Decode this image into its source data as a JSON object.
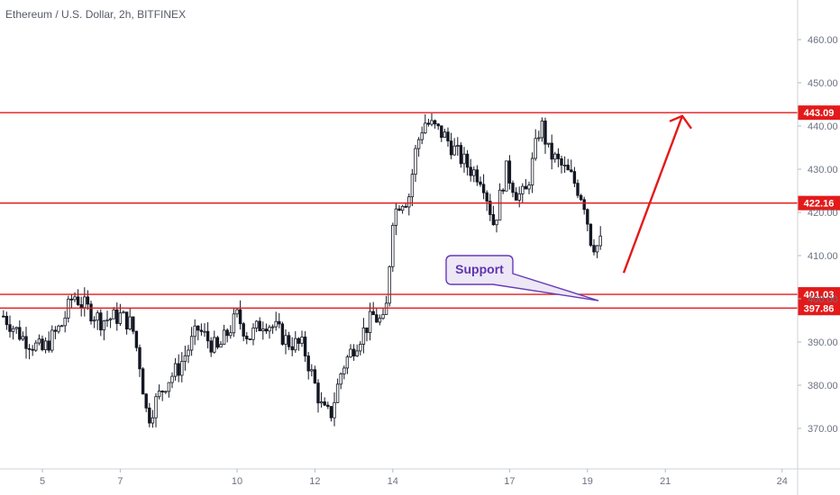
{
  "chart_data": {
    "type": "candlestick",
    "title": "Ethereum / U.S. Dollar, 2h, BITFINEX",
    "x_ticks": [
      "5",
      "7",
      "10",
      "12",
      "14",
      "17",
      "19",
      "21",
      "24"
    ],
    "y_ticks": [
      "370.00",
      "380.00",
      "390.00",
      "400.00",
      "410.00",
      "420.00",
      "430.00",
      "440.00",
      "450.00",
      "460.00"
    ],
    "ylim": [
      361,
      468
    ],
    "grid": false,
    "levels": [
      {
        "label": "443.09",
        "value": 443.09
      },
      {
        "label": "422.16",
        "value": 422.16
      },
      {
        "label": "401.03",
        "value": 401.03
      },
      {
        "label": "397.86",
        "value": 397.86
      }
    ],
    "annotation": {
      "text": "Support"
    },
    "projection": {
      "direction": "up",
      "from": 406,
      "to": 444
    },
    "price_path": [
      [
        4.0,
        396
      ],
      [
        4.5,
        391
      ],
      [
        5.0,
        388
      ],
      [
        5.5,
        394
      ],
      [
        5.8,
        401
      ],
      [
        6.0,
        399
      ],
      [
        6.5,
        395
      ],
      [
        7.0,
        396
      ],
      [
        7.3,
        394
      ],
      [
        7.5,
        385
      ],
      [
        7.7,
        372
      ],
      [
        7.9,
        376
      ],
      [
        8.2,
        381
      ],
      [
        8.5,
        384
      ],
      [
        9.0,
        393
      ],
      [
        9.5,
        388
      ],
      [
        10.0,
        396
      ],
      [
        10.3,
        391
      ],
      [
        10.7,
        395
      ],
      [
        11.0,
        393
      ],
      [
        11.3,
        390
      ],
      [
        11.7,
        389
      ],
      [
        12.0,
        380
      ],
      [
        12.2,
        374
      ],
      [
        12.4,
        373
      ],
      [
        12.7,
        384
      ],
      [
        13.0,
        389
      ],
      [
        13.5,
        396
      ],
      [
        13.8,
        394
      ],
      [
        14.0,
        419
      ],
      [
        14.2,
        423
      ],
      [
        14.4,
        423
      ],
      [
        14.6,
        435
      ],
      [
        14.8,
        441
      ],
      [
        15.0,
        440
      ],
      [
        15.3,
        438
      ],
      [
        15.7,
        433
      ],
      [
        16.0,
        430
      ],
      [
        16.3,
        428
      ],
      [
        16.6,
        417
      ],
      [
        16.9,
        430
      ],
      [
        17.2,
        424
      ],
      [
        17.4,
        424
      ],
      [
        17.6,
        432
      ],
      [
        17.8,
        441
      ],
      [
        18.0,
        434
      ],
      [
        18.3,
        431
      ],
      [
        18.6,
        428
      ],
      [
        18.9,
        423
      ],
      [
        19.1,
        413
      ],
      [
        19.3,
        412
      ],
      [
        19.4,
        415
      ]
    ]
  }
}
